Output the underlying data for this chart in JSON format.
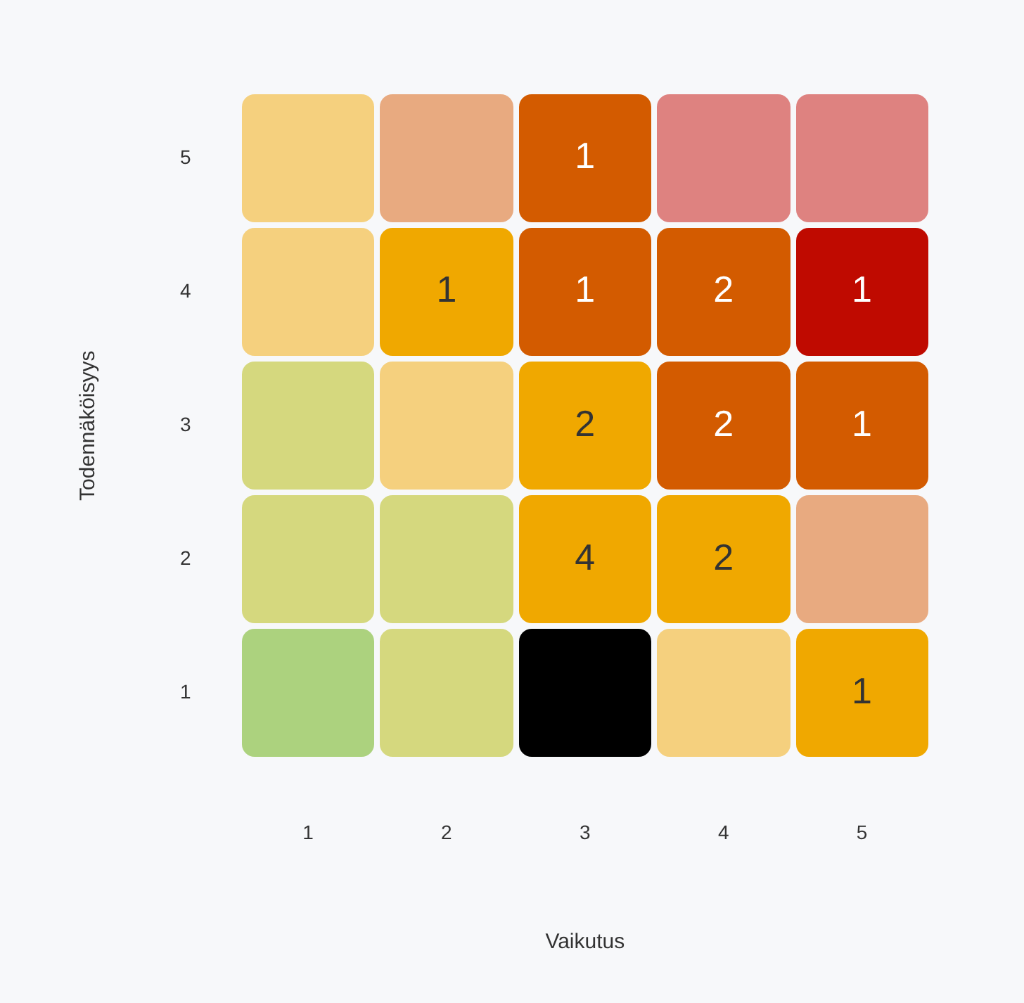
{
  "chart_data": {
    "type": "heatmap",
    "data_labels": true,
    "xlabel": "Vaikutus",
    "ylabel": "Todennäköisyys",
    "categories": [
      "1",
      "2",
      "3",
      "4",
      "5"
    ],
    "y_categories": [
      "5",
      "4",
      "3",
      "2",
      "1"
    ],
    "cells": [
      [
        null,
        null,
        1,
        null,
        null
      ],
      [
        null,
        1,
        1,
        2,
        1
      ],
      [
        null,
        null,
        2,
        2,
        1
      ],
      [
        null,
        null,
        4,
        2,
        null
      ],
      [
        null,
        null,
        null,
        null,
        1
      ]
    ],
    "colors": [
      [
        "#f5d07e",
        "#e8aa80",
        "#d35b00",
        "#de8280",
        "#de8280"
      ],
      [
        "#f5d07e",
        "#f0a800",
        "#d35b00",
        "#d35b00",
        "#bf0a00"
      ],
      [
        "#d5d87e",
        "#f5d07e",
        "#f0a800",
        "#d35b00",
        "#d35b00"
      ],
      [
        "#d5d87e",
        "#d5d87e",
        "#f0a800",
        "#f0a800",
        "#e8aa80"
      ],
      [
        "#acd27e",
        "#d5d87e",
        "#000000",
        "#f5d07e",
        "#f0a800"
      ]
    ]
  }
}
